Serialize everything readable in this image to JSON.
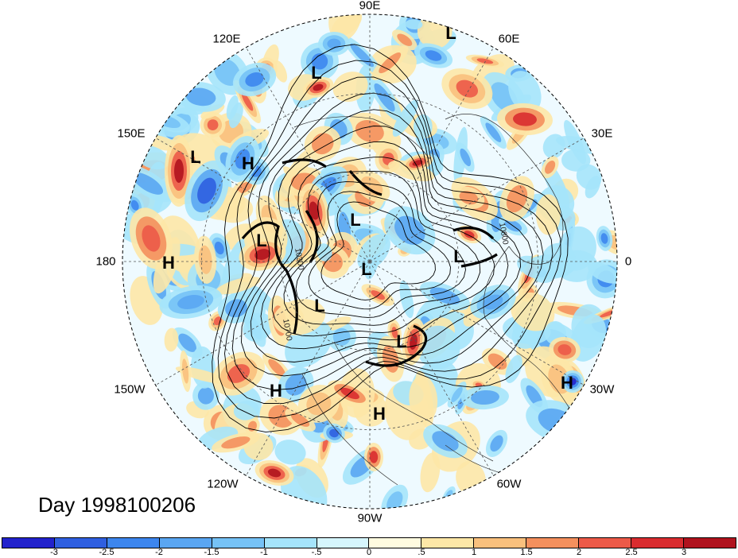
{
  "map": {
    "projection": "north-polar-stereographic",
    "longitude_labels": [
      "90E",
      "60E",
      "30E",
      "0",
      "30W",
      "60W",
      "90W",
      "120W",
      "150W",
      "180",
      "150E",
      "120E"
    ],
    "pressure_systems": [
      {
        "type": "L",
        "region": "north of Siberia"
      },
      {
        "type": "L",
        "region": "East Asia"
      },
      {
        "type": "L",
        "region": "West Pacific"
      },
      {
        "type": "H",
        "region": "Far East Russia"
      },
      {
        "type": "L",
        "region": "Bering Sea"
      },
      {
        "type": "L",
        "region": "Arctic"
      },
      {
        "type": "L",
        "region": "North Pole"
      },
      {
        "type": "L",
        "region": "Northern Europe"
      },
      {
        "type": "H",
        "region": "Central Pacific"
      },
      {
        "type": "L",
        "region": "Alaska"
      },
      {
        "type": "L",
        "region": "Hudson Bay"
      },
      {
        "type": "H",
        "region": "Northeast Pacific"
      },
      {
        "type": "H",
        "region": "Southeast US"
      },
      {
        "type": "H",
        "region": "Central Atlantic"
      }
    ],
    "contour_labels": [
      "10800",
      "10300",
      "10700"
    ],
    "colors": {
      "strong_negative": "#1c1cc8",
      "negative": "#6aa9ea",
      "near_zero": "#e6f8ff",
      "positive": "#f7a774",
      "strong_positive": "#b01525"
    }
  },
  "title": "Day 1998100206",
  "colorbar": {
    "colors": [
      "#2222cc",
      "#2f5fe0",
      "#3d86ee",
      "#5aa6f2",
      "#76c2f6",
      "#a5e4fb",
      "#d6f6fd",
      "#fffbe0",
      "#fde7a7",
      "#f9c07d",
      "#f4905d",
      "#ec5a48",
      "#d92c2f",
      "#b0131e"
    ],
    "ticks": [
      "-3",
      "-2.5",
      "-2",
      "-1.5",
      "-1",
      "-.5",
      "0",
      ".5",
      "1",
      "1.5",
      "2",
      "2.5",
      "3"
    ]
  }
}
